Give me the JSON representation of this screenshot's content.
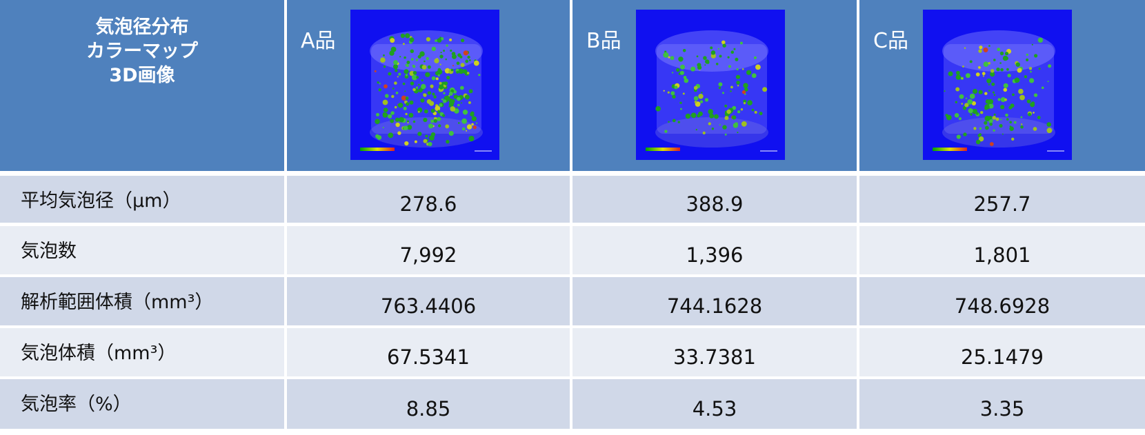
{
  "header": {
    "title_lines": [
      "気泡径分布",
      "カラーマップ",
      "3D画像"
    ],
    "columns": [
      "A品",
      "B品",
      "C品"
    ]
  },
  "table": {
    "rows": [
      [
        "平均気泡径（μm）",
        "278.6",
        "388.9",
        "257.7"
      ],
      [
        "気泡数",
        "7,992",
        "1,396",
        "1,801"
      ],
      [
        "解析範囲体積（mm³）",
        "763.4406",
        "744.1628",
        "748.6928"
      ],
      [
        "気泡体積（mm³）",
        "67.5341",
        "33.7381",
        "25.1479"
      ],
      [
        "気泡率（%）",
        "8.85",
        "4.53",
        "3.35"
      ]
    ]
  }
}
